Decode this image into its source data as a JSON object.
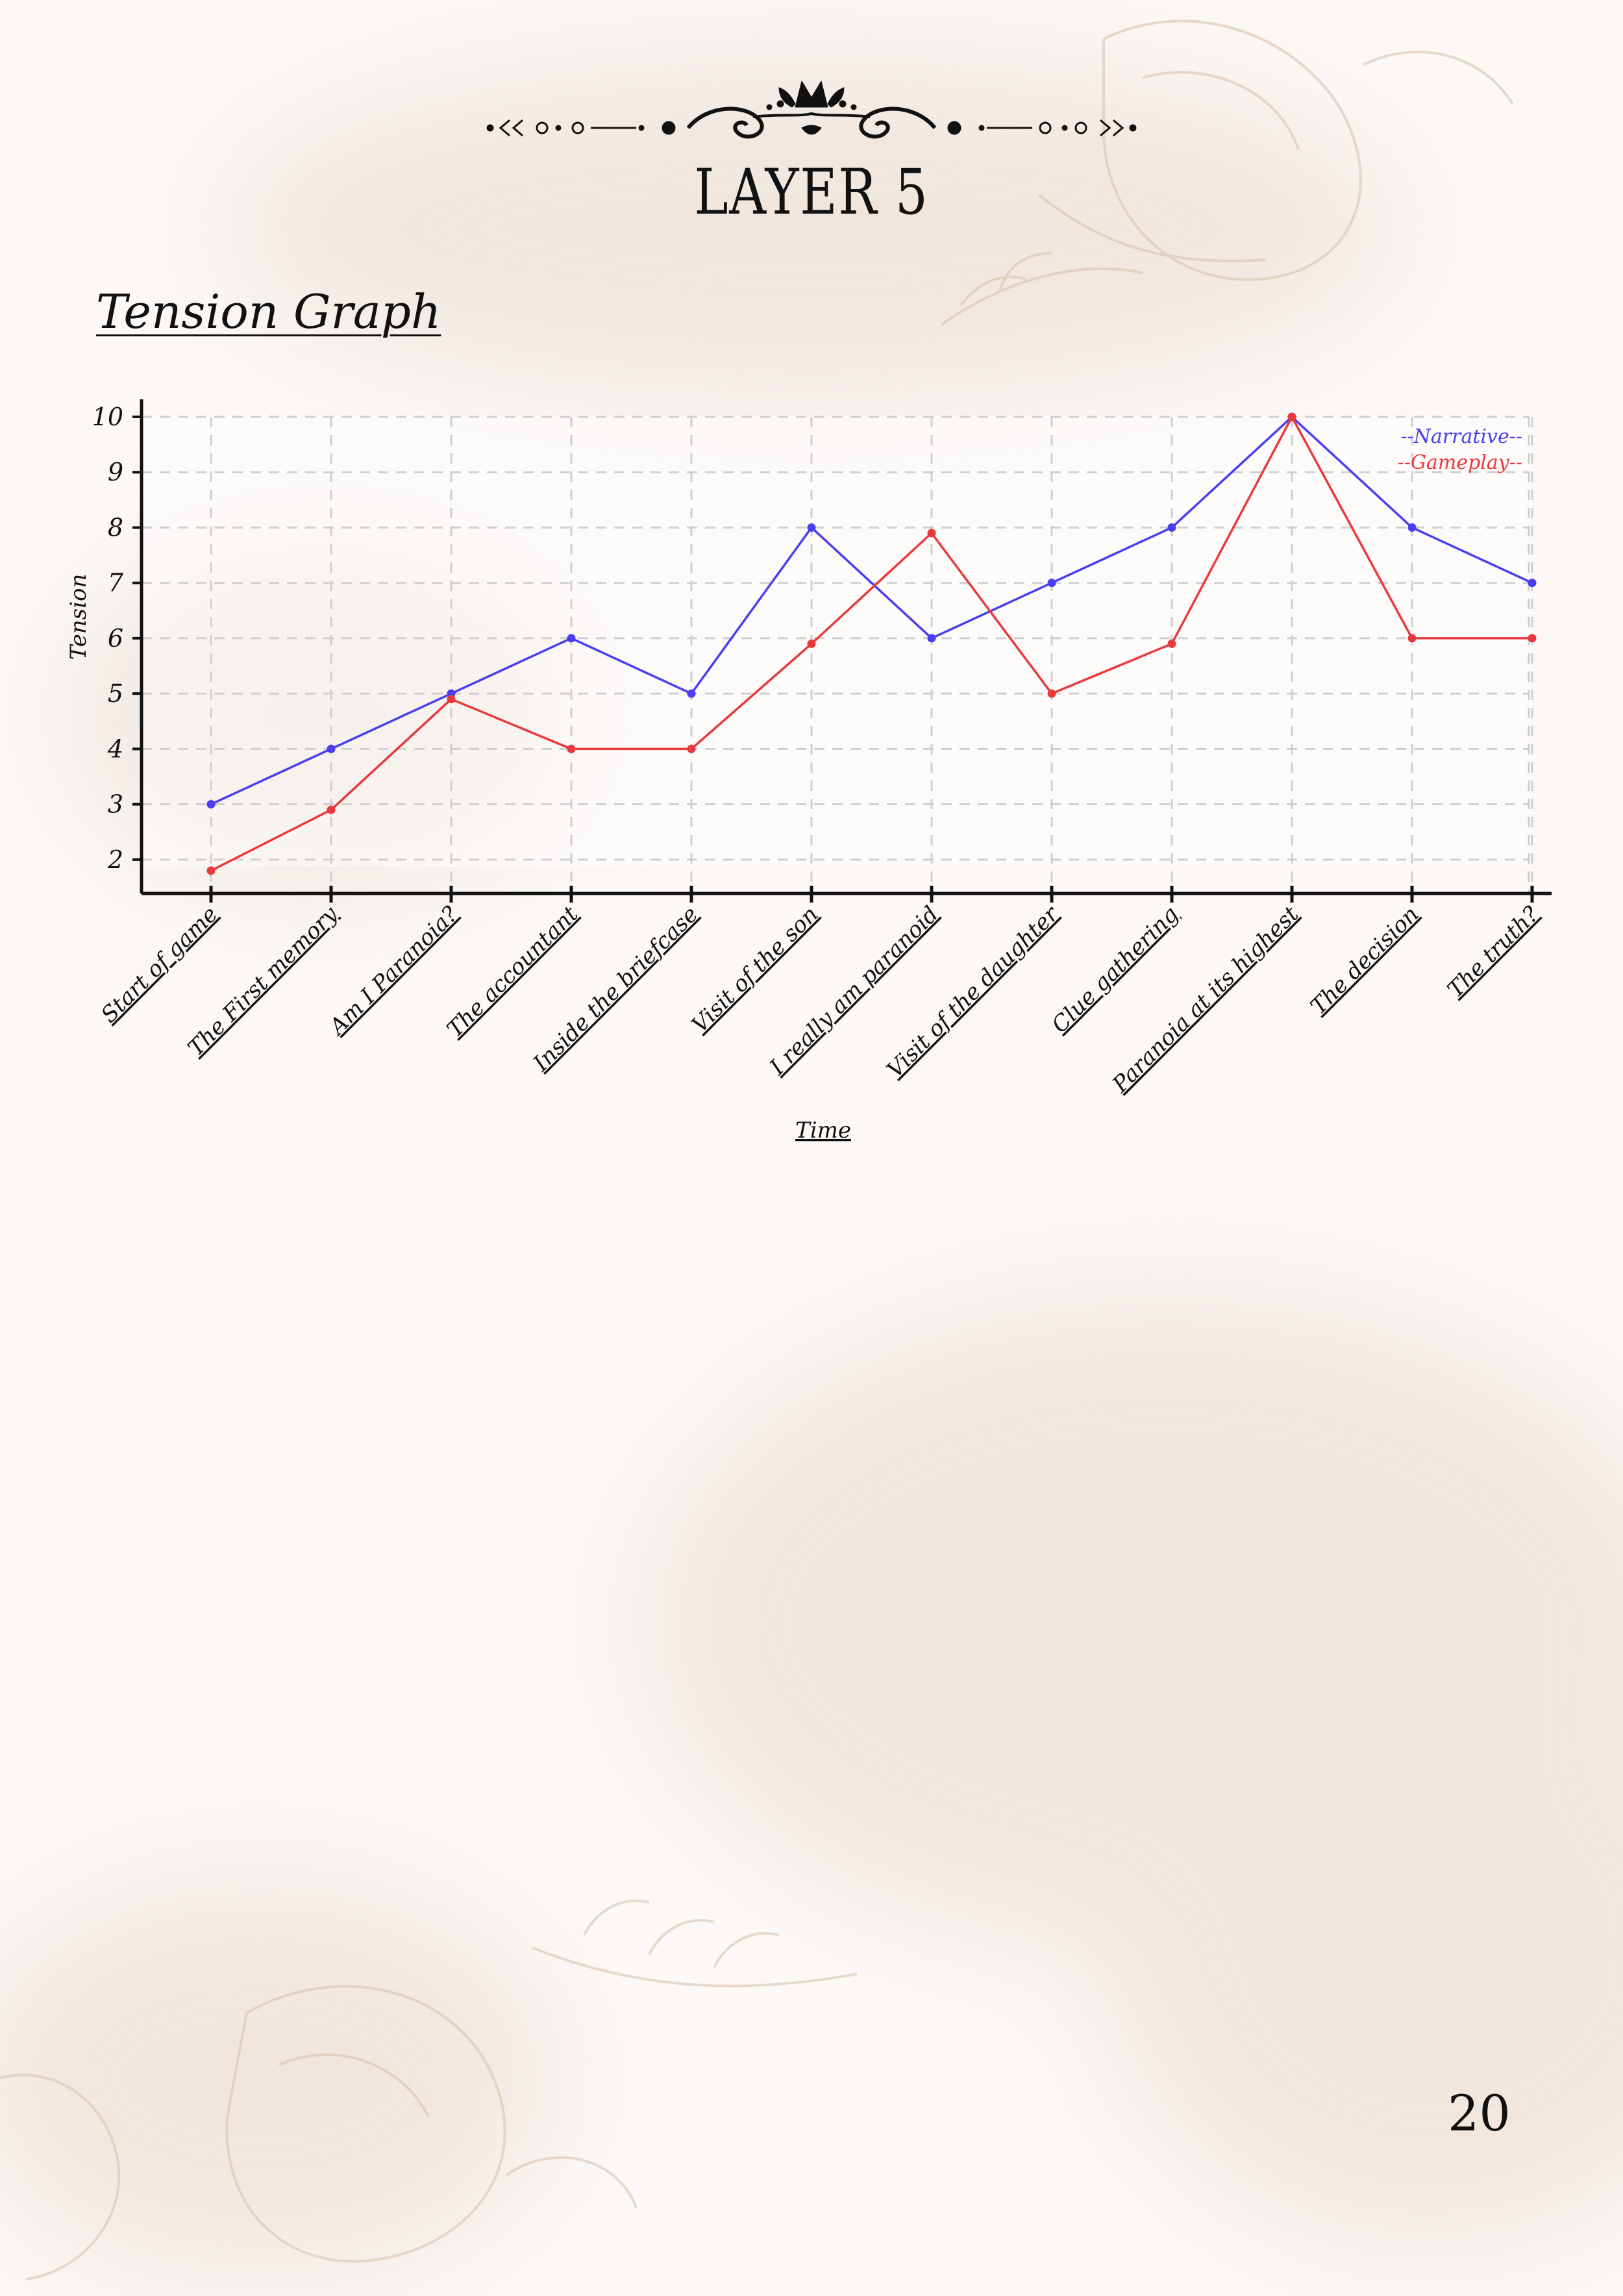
{
  "page": {
    "title": "LAYER 5",
    "section_title": "Tension Graph",
    "page_number": "20"
  },
  "colors": {
    "narrative": "#4a3ff0",
    "gameplay": "#e8393c",
    "ink": "#111111",
    "paper": "#fbf8f6",
    "stain": "#e8d9cc"
  },
  "icons": {
    "header": "floral-scroll-ornament-icon",
    "background": "botanical-line-drawing-icon"
  },
  "chart_data": {
    "type": "line",
    "title": "",
    "xlabel": "Time",
    "ylabel": "Tension",
    "ylim": [
      1.4,
      10
    ],
    "yticks": [
      2,
      3,
      4,
      5,
      6,
      7,
      8,
      9,
      10
    ],
    "grid": true,
    "legend_position": "top-right",
    "categories": [
      "Start of game",
      "The First memory",
      "Am I Paranoia?",
      "The accountant",
      "Inside the briefcase",
      "Visit of the son",
      "I really am paranoid",
      "Visit of the daughter",
      "Clue gathering",
      "Paranoia at its highest",
      "The decision",
      "The truth?"
    ],
    "series": [
      {
        "name": "Narrative",
        "color": "#4a3ff0",
        "legend": "--Narrative--",
        "values": [
          3,
          4,
          5,
          6,
          5,
          8,
          6,
          7,
          8,
          10,
          8,
          7
        ]
      },
      {
        "name": "Gameplay",
        "color": "#e8393c",
        "legend": "--Gameplay--",
        "values": [
          1.8,
          2.9,
          4.9,
          4,
          4,
          5.9,
          7.9,
          5,
          5.9,
          10,
          6,
          6
        ]
      }
    ]
  }
}
